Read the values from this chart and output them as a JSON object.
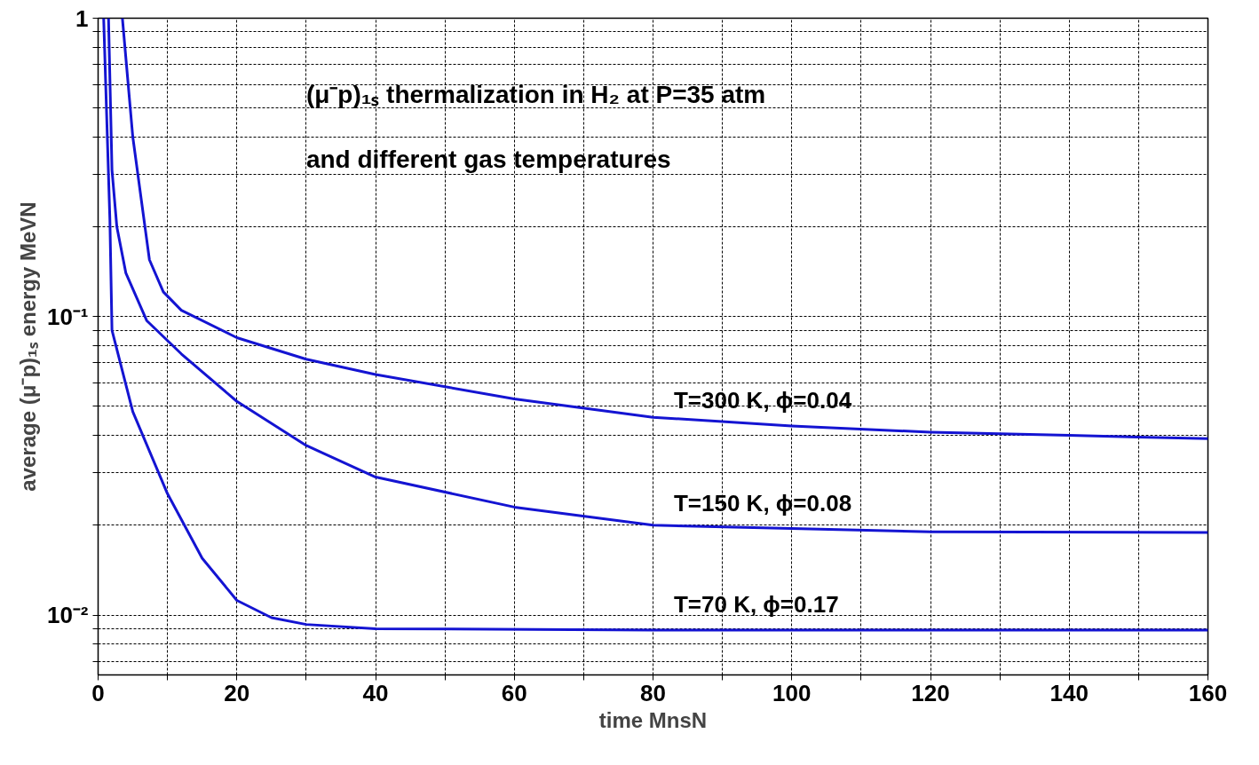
{
  "chart_data": {
    "type": "line",
    "xlabel": "time MnsN",
    "ylabel": "average (μ⁻p)₁ₛ energy MeVN",
    "annotations": [
      "(μ⁻p)₁ₛ thermalization in H₂ at P=35 atm",
      "and different gas temperatures"
    ],
    "log": "y",
    "grid": true,
    "legend": false,
    "marker": "none",
    "line_style": "solid",
    "xlim": [
      0,
      160
    ],
    "ylim": [
      0.0063,
      1
    ],
    "xticks": [
      0,
      {
        "value": 10,
        "label": null
      },
      20,
      {
        "value": 30,
        "label": null
      },
      40,
      {
        "value": 50,
        "label": null
      },
      60,
      {
        "value": 70,
        "label": null
      },
      80,
      {
        "value": 90,
        "label": null
      },
      100,
      {
        "value": 110,
        "label": null
      },
      120,
      {
        "value": 130,
        "label": null
      },
      140,
      {
        "value": 150,
        "label": null
      },
      160
    ],
    "yticks": [
      {
        "value": 0.007,
        "label": null
      },
      {
        "value": 0.008,
        "label": null
      },
      {
        "value": 0.009,
        "label": null
      },
      {
        "value": 0.01,
        "label": "10⁻²"
      },
      {
        "value": 0.02,
        "label": null
      },
      {
        "value": 0.03,
        "label": null
      },
      {
        "value": 0.04,
        "label": null
      },
      {
        "value": 0.05,
        "label": null
      },
      {
        "value": 0.06,
        "label": null
      },
      {
        "value": 0.07,
        "label": null
      },
      {
        "value": 0.08,
        "label": null
      },
      {
        "value": 0.09,
        "label": null
      },
      {
        "value": 0.1,
        "label": "10⁻¹"
      },
      {
        "value": 0.2,
        "label": null
      },
      {
        "value": 0.3,
        "label": null
      },
      {
        "value": 0.4,
        "label": null
      },
      {
        "value": 0.5,
        "label": null
      },
      {
        "value": 0.6,
        "label": null
      },
      {
        "value": 0.7,
        "label": null
      },
      {
        "value": 0.8,
        "label": null
      },
      {
        "value": 0.9,
        "label": null
      },
      1
    ],
    "series": [
      {
        "name": "T=300 K,  ϕ=0.04",
        "color": "#1414d2",
        "x": [
          3.5,
          5,
          7.4,
          9.4,
          12,
          20,
          30,
          40,
          60,
          80,
          100,
          120,
          140,
          160
        ],
        "values": [
          1,
          0.4,
          0.155,
          0.121,
          0.105,
          0.085,
          0.072,
          0.064,
          0.053,
          0.046,
          0.043,
          0.041,
          0.04,
          0.039
        ]
      },
      {
        "name": "T=150 K,  ϕ=0.08",
        "color": "#1414d2",
        "x": [
          1.5,
          2,
          2.7,
          4,
          7,
          12,
          20,
          30,
          40,
          60,
          80,
          100,
          120,
          160
        ],
        "values": [
          1,
          0.31,
          0.2,
          0.14,
          0.097,
          0.075,
          0.052,
          0.037,
          0.029,
          0.023,
          0.02,
          0.0195,
          0.019,
          0.0189
        ]
      },
      {
        "name": "T=70 K,    ϕ=0.17",
        "color": "#1414d2",
        "x": [
          0.8,
          1.7,
          2,
          5,
          10,
          15,
          20,
          25,
          30,
          40,
          80,
          120,
          160
        ],
        "values": [
          1,
          0.21,
          0.09,
          0.048,
          0.0255,
          0.0155,
          0.0112,
          0.0098,
          0.0093,
          0.009,
          0.0089,
          0.0089,
          0.0089
        ]
      }
    ]
  }
}
